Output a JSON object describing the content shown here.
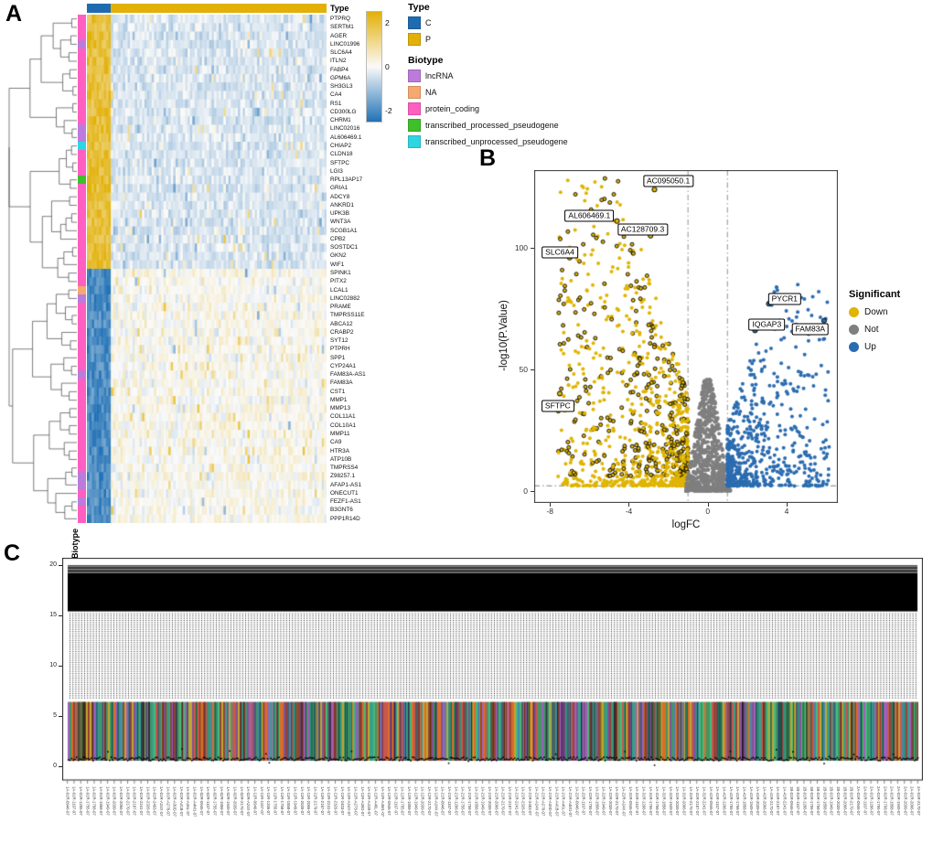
{
  "panels": {
    "a": "A",
    "b": "B",
    "c": "C"
  },
  "chart_data": [
    {
      "id": "heatmap",
      "type": "heatmap",
      "panel": "A",
      "description": "Hierarchically clustered heatmap of top differentially expressed genes; columns annotated by sample Type (C, P), rows annotated by gene Biotype; scale from -2 (blue) to 2 (gold).",
      "scale": {
        "ticks": [
          "2",
          "0",
          "-2"
        ],
        "domain": [
          -2.5,
          2.5
        ],
        "high_color": "#E2B007",
        "mid_color": "#FAFAFA",
        "low_color": "#2171B5"
      },
      "top_annotation": {
        "title": "Type",
        "groups": [
          {
            "label": "C",
            "color": "#1F6BB0",
            "columns": 10
          },
          {
            "label": "P",
            "color": "#E2B007",
            "columns": 90
          }
        ]
      },
      "row_annotation": {
        "title": "Biotype",
        "classes": [
          {
            "label": "lncRNA",
            "color": "#BC7BDC"
          },
          {
            "label": "NA",
            "color": "#F5A86F"
          },
          {
            "label": "protein_coding",
            "color": "#FF5FC0"
          },
          {
            "label": "transcribed_processed_pseudogene",
            "color": "#3FBF2A"
          },
          {
            "label": "transcribed_unprocessed_pseudogene",
            "color": "#2FD5E0"
          }
        ]
      },
      "expression_pattern": {
        "rows_high_in_C": 30,
        "rows_low_in_C": 30
      },
      "genes": [
        {
          "name": "PTPRQ",
          "biotype": "protein_coding"
        },
        {
          "name": "SERTM1",
          "biotype": "protein_coding"
        },
        {
          "name": "AGER",
          "biotype": "protein_coding"
        },
        {
          "name": "LINC01996",
          "biotype": "lncRNA"
        },
        {
          "name": "SLC6A4",
          "biotype": "protein_coding"
        },
        {
          "name": "ITLN2",
          "biotype": "protein_coding"
        },
        {
          "name": "FABP4",
          "biotype": "protein_coding"
        },
        {
          "name": "GPM6A",
          "biotype": "protein_coding"
        },
        {
          "name": "SH3GL3",
          "biotype": "protein_coding"
        },
        {
          "name": "CA4",
          "biotype": "protein_coding"
        },
        {
          "name": "RS1",
          "biotype": "protein_coding"
        },
        {
          "name": "CD300LG",
          "biotype": "protein_coding"
        },
        {
          "name": "CHRM1",
          "biotype": "protein_coding"
        },
        {
          "name": "LINC02016",
          "biotype": "lncRNA"
        },
        {
          "name": "AL606469.1",
          "biotype": "lncRNA"
        },
        {
          "name": "CHIAP2",
          "biotype": "transcribed_unprocessed_pseudogene"
        },
        {
          "name": "CLDN18",
          "biotype": "protein_coding"
        },
        {
          "name": "SFTPC",
          "biotype": "protein_coding"
        },
        {
          "name": "LGI3",
          "biotype": "protein_coding"
        },
        {
          "name": "RPL13AP17",
          "biotype": "transcribed_processed_pseudogene"
        },
        {
          "name": "GRIA1",
          "biotype": "protein_coding"
        },
        {
          "name": "ADCY8",
          "biotype": "protein_coding"
        },
        {
          "name": "ANKRD1",
          "biotype": "protein_coding"
        },
        {
          "name": "UPK3B",
          "biotype": "protein_coding"
        },
        {
          "name": "WNT3A",
          "biotype": "protein_coding"
        },
        {
          "name": "SCGB1A1",
          "biotype": "protein_coding"
        },
        {
          "name": "CPB2",
          "biotype": "protein_coding"
        },
        {
          "name": "SOSTDC1",
          "biotype": "protein_coding"
        },
        {
          "name": "GKN2",
          "biotype": "protein_coding"
        },
        {
          "name": "WIF1",
          "biotype": "protein_coding"
        },
        {
          "name": "SPINK1",
          "biotype": "protein_coding"
        },
        {
          "name": "PITX2",
          "biotype": "protein_coding"
        },
        {
          "name": "LCAL1",
          "biotype": "NA"
        },
        {
          "name": "LINC02882",
          "biotype": "lncRNA"
        },
        {
          "name": "PRAME",
          "biotype": "protein_coding"
        },
        {
          "name": "TMPRSS11E",
          "biotype": "protein_coding"
        },
        {
          "name": "ABCA12",
          "biotype": "protein_coding"
        },
        {
          "name": "CRABP2",
          "biotype": "protein_coding"
        },
        {
          "name": "SYT12",
          "biotype": "protein_coding"
        },
        {
          "name": "PTPRH",
          "biotype": "protein_coding"
        },
        {
          "name": "SPP1",
          "biotype": "protein_coding"
        },
        {
          "name": "CYP24A1",
          "biotype": "protein_coding"
        },
        {
          "name": "FAM83A-AS1",
          "biotype": "lncRNA"
        },
        {
          "name": "FAM83A",
          "biotype": "protein_coding"
        },
        {
          "name": "CST1",
          "biotype": "protein_coding"
        },
        {
          "name": "MMP1",
          "biotype": "protein_coding"
        },
        {
          "name": "MMP13",
          "biotype": "protein_coding"
        },
        {
          "name": "COL11A1",
          "biotype": "protein_coding"
        },
        {
          "name": "COL10A1",
          "biotype": "protein_coding"
        },
        {
          "name": "MMP11",
          "biotype": "protein_coding"
        },
        {
          "name": "CA9",
          "biotype": "protein_coding"
        },
        {
          "name": "HTR3A",
          "biotype": "protein_coding"
        },
        {
          "name": "ATP10B",
          "biotype": "protein_coding"
        },
        {
          "name": "TMPRSS4",
          "biotype": "protein_coding"
        },
        {
          "name": "Z98257.1",
          "biotype": "lncRNA"
        },
        {
          "name": "AFAP1-AS1",
          "biotype": "lncRNA"
        },
        {
          "name": "ONECUT1",
          "biotype": "protein_coding"
        },
        {
          "name": "FEZF1-AS1",
          "biotype": "lncRNA"
        },
        {
          "name": "B3GNT6",
          "biotype": "protein_coding"
        },
        {
          "name": "PPP1R14D",
          "biotype": "protein_coding"
        }
      ]
    },
    {
      "id": "volcano",
      "type": "scatter",
      "panel": "B",
      "xlabel": "logFC",
      "ylabel": "-log10(P.Value)",
      "xlim": [
        -8.8,
        6.6
      ],
      "ylim": [
        -5,
        132
      ],
      "xticks": [
        -8,
        -4,
        0,
        4
      ],
      "yticks": [
        0,
        50,
        100
      ],
      "threshold_lines": {
        "vertical_logfc": [
          -1,
          1
        ],
        "horizontal_neglog10p": 2
      },
      "legend": {
        "title": "Significant",
        "items": [
          {
            "label": "Down",
            "color": "#E0B400"
          },
          {
            "label": "Not",
            "color": "#7F7F7F"
          },
          {
            "label": "Up",
            "color": "#2B6CB0"
          }
        ]
      },
      "labeled_genes": [
        {
          "label": "AC095050.1",
          "point": [
            -2.7,
            124
          ],
          "label_pos": [
            -2.0,
            127.5
          ]
        },
        {
          "label": "AL606469.1",
          "point": [
            -4.6,
            111
          ],
          "label_pos": [
            -6.0,
            113
          ]
        },
        {
          "label": "AC128709.3",
          "point": [
            -2.9,
            105
          ],
          "label_pos": [
            -3.3,
            107.5
          ]
        },
        {
          "label": "SLC6A4",
          "point": [
            -7.0,
            96
          ],
          "label_pos": [
            -7.5,
            98
          ]
        },
        {
          "label": "SFTPC",
          "point": [
            -7.5,
            40
          ],
          "label_pos": [
            -7.6,
            35
          ]
        },
        {
          "label": "PYCR1",
          "point": [
            3.1,
            77
          ],
          "label_pos": [
            3.9,
            79
          ]
        },
        {
          "label": "IQGAP3",
          "point": [
            2.4,
            66
          ],
          "label_pos": [
            3.0,
            68.5
          ]
        },
        {
          "label": "FAM83A",
          "point": [
            5.9,
            70
          ],
          "label_pos": [
            5.2,
            66.5
          ]
        }
      ],
      "clouds": [
        {
          "name": "Down",
          "color": "#E0B400",
          "n": 1050,
          "ring_fraction": 0.4
        },
        {
          "name": "Not",
          "color": "#7F7F7F",
          "n": 850
        },
        {
          "name": "Up",
          "color": "#2B6CB0",
          "n": 620
        }
      ]
    },
    {
      "id": "samples",
      "type": "scatter",
      "panel": "C",
      "description": "Per-sample expression overview: solid band of overlapped points near the top, dotted mid-range values, and colored per-sample strips near zero with a black baseline scatter.",
      "ylim": [
        0,
        20
      ],
      "yticks": [
        0,
        5,
        10,
        15,
        20
      ],
      "bands": {
        "top_lines": [
          19.3,
          20.0
        ],
        "solid_top": [
          15.4,
          19.2
        ],
        "dotted": [
          6.8,
          15.2
        ],
        "colored": [
          0.55,
          6.4
        ],
        "baseline_scatter": 0.8
      },
      "strip_palette": [
        "#c0392b",
        "#27ae60",
        "#2471a3",
        "#8e44ad",
        "#b7950b",
        "#148f77",
        "#d35400",
        "#2e4053",
        "#7b241c",
        "#1e8449",
        "#6c3483",
        "#117864"
      ],
      "samples": [
        "1A-01R-0946-07",
        "1A-01R-1107-07",
        "1A-01R-1206-07",
        "1A-01R-1755-07",
        "1A-01R-1758-07",
        "1A-01R-1858-07",
        "1A-01R-1949-07",
        "1A-01R-2039-07",
        "1A-01R-2066-07",
        "1A-01R-2170-07",
        "1A-01R-2187-07",
        "1A-01R-2241-07",
        "1A-01R-2326-07",
        "1A-01R-2403-07",
        "1A-01R-A24X-07",
        "1A-01R-A278-07",
        "1A-01R-A39D-07",
        "1A-01R-A41B-07",
        "1A-01R-A46L-07",
        "1A-01R-A4M1-07",
        "1A-02R-0946-07",
        "1A-02R-1107-07",
        "1A-02R-1755-07",
        "1A-02R-1858-07",
        "1A-02R-1949-07",
        "1A-02R-2039-07",
        "1A-02R-2170-07",
        "1A-02R-A24X-07",
        "1A-11R-0946-07",
        "1A-11R-1107-07",
        "1A-11R-1206-07",
        "1A-11R-1755-07",
        "1A-11R-1758-07",
        "1A-11R-1858-07",
        "1A-11R-1949-07",
        "1A-11R-2039-07",
        "1A-11R-2066-07",
        "1A-11R-2170-07",
        "1A-11R-2187-07",
        "1A-11R-2241-07",
        "1A-11R-2326-07",
        "1A-11R-2403-07",
        "1A-11R-A24X-07",
        "1A-11R-A278-07",
        "1A-11R-A39D-07",
        "1A-11R-A41B-07",
        "1A-11R-A46L-07",
        "1A-11R-A4M1-07",
        "1A-12R-0946-07",
        "1A-12R-1107-07",
        "1A-12R-1755-07",
        "1A-12R-1858-07",
        "1A-12R-1949-07",
        "1A-12R-2039-07",
        "1A-12R-2170-07",
        "1A-12R-A24X-07",
        "1A-21R-0946-07",
        "1A-21R-1107-07",
        "1A-21R-1206-07",
        "1A-21R-1755-07",
        "1A-21R-1758-07",
        "1A-21R-1858-07",
        "1A-21R-1949-07",
        "1A-21R-2039-07",
        "1A-21R-2066-07",
        "1A-21R-2170-07",
        "1A-21R-2187-07",
        "1A-21R-2241-07",
        "1A-21R-2326-07",
        "1A-21R-2403-07",
        "1A-21R-A24X-07",
        "1A-21R-A278-07",
        "1A-21R-A39D-07",
        "1A-21R-A41B-07",
        "1A-21R-A46L-07",
        "1A-21R-A4M1-07",
        "1A-22R-0946-07",
        "1A-22R-1107-07",
        "1A-22R-1755-07",
        "1A-22R-1858-07",
        "1A-22R-1949-07",
        "1A-22R-2039-07",
        "1A-22R-2170-07",
        "1A-22R-A24X-07",
        "1A-31R-0946-07",
        "1A-31R-1107-07",
        "1A-31R-1206-07",
        "1A-31R-1755-07",
        "1A-31R-1758-07",
        "1A-31R-1858-07",
        "1A-31R-1949-07",
        "1A-31R-2039-07",
        "1A-31R-2066-07",
        "1A-31R-2170-07",
        "1A-31R-2187-07",
        "1A-31R-2241-07",
        "1A-41R-0946-07",
        "1A-41R-1107-07",
        "1A-41R-1206-07",
        "1A-41R-1755-07",
        "1A-41R-1758-07",
        "1A-41R-1858-07",
        "1A-41R-1949-07",
        "1A-41R-2039-07",
        "1A-41R-2066-07",
        "1A-41R-2170-07",
        "1A-41R-2187-07",
        "1A-41R-2241-07",
        "1B-01R-0946-07",
        "1B-01R-1107-07",
        "1B-01R-1206-07",
        "1B-01R-1755-07",
        "1B-01R-1758-07",
        "1B-01R-1858-07",
        "1B-01R-1949-07",
        "1B-01R-2039-07",
        "1B-01R-2066-07",
        "1B-01R-2170-07",
        "2A-01R-0946-07",
        "2A-01R-1107-07",
        "2A-01R-1206-07",
        "2A-01R-1755-07",
        "2A-01R-1758-07",
        "2A-01R-1858-07",
        "2A-01R-1949-07",
        "2A-01R-2039-07",
        "2A-01R-2066-07",
        "2A-01R-2170-07"
      ]
    }
  ]
}
